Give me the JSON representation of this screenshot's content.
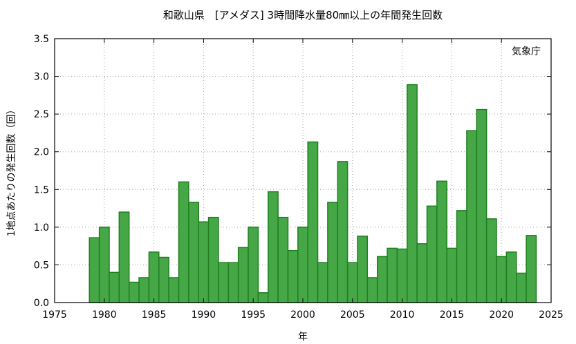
{
  "chart_data": {
    "type": "bar",
    "title": "和歌山県　[アメダス] 3時間降水量80㎜以上の年間発生回数",
    "annotation": "気象庁",
    "xlabel": "年",
    "ylabel": "1地点あたりの発生回数（回）",
    "xlim": [
      1975,
      2025
    ],
    "ylim": [
      0,
      3.5
    ],
    "xticks": [
      1975,
      1980,
      1985,
      1990,
      1995,
      2000,
      2005,
      2010,
      2015,
      2020,
      2025
    ],
    "yticks": [
      0.0,
      0.5,
      1.0,
      1.5,
      2.0,
      2.5,
      3.0,
      3.5
    ],
    "ytick_labels": [
      "0.0",
      "0.5",
      "1.0",
      "1.5",
      "2.0",
      "2.5",
      "3.0",
      "3.5"
    ],
    "grid": true,
    "bar_color": "#46a746",
    "bar_edge_color": "#1f7f1f",
    "categories": [
      1979,
      1980,
      1981,
      1982,
      1983,
      1984,
      1985,
      1986,
      1987,
      1988,
      1989,
      1990,
      1991,
      1992,
      1993,
      1994,
      1995,
      1996,
      1997,
      1998,
      1999,
      2000,
      2001,
      2002,
      2003,
      2004,
      2005,
      2006,
      2007,
      2008,
      2009,
      2010,
      2011,
      2012,
      2013,
      2014,
      2015,
      2016,
      2017,
      2018,
      2019,
      2020,
      2021,
      2022,
      2023
    ],
    "values": [
      0.86,
      1.0,
      0.4,
      1.2,
      0.27,
      0.33,
      0.67,
      0.6,
      0.33,
      1.6,
      1.33,
      1.07,
      1.13,
      0.53,
      0.53,
      0.73,
      1.0,
      0.13,
      1.47,
      1.13,
      0.69,
      1.0,
      2.13,
      0.53,
      1.33,
      1.87,
      0.53,
      0.88,
      0.33,
      0.61,
      0.72,
      0.71,
      2.89,
      0.78,
      1.28,
      1.61,
      0.72,
      1.22,
      2.28,
      2.56,
      1.11,
      0.61,
      0.67,
      0.39,
      0.89
    ]
  }
}
